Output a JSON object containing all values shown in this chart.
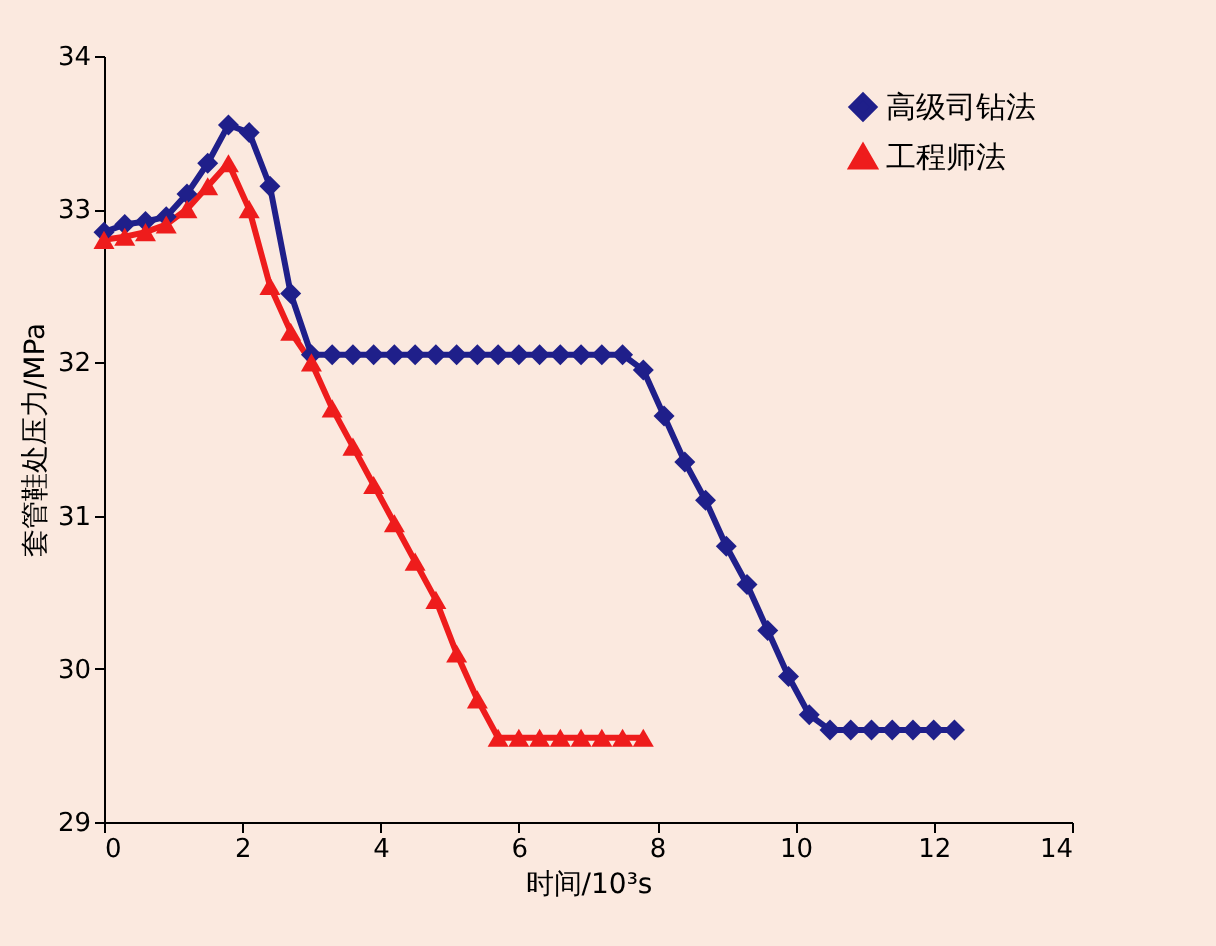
{
  "chart_data": {
    "type": "line",
    "xlabel": "时间/10³s",
    "ylabel": "套管鞋处压力/MPa",
    "xlim": [
      0,
      14
    ],
    "xticks": [
      0,
      2,
      4,
      6,
      8,
      10,
      12,
      14
    ],
    "ylim": [
      29,
      34
    ],
    "yticks": [
      29,
      30,
      31,
      32,
      33,
      34
    ],
    "grid": false,
    "legend": "top right",
    "line_style": "solid",
    "series": [
      {
        "name": "高级司钻法",
        "color": "#1f1f8a",
        "marker": "diamond",
        "x": [
          0,
          0.3,
          0.6,
          0.9,
          1.2,
          1.5,
          1.8,
          2.1,
          2.4,
          2.7,
          3.0,
          3.3,
          3.6,
          3.9,
          4.2,
          4.5,
          4.8,
          5.1,
          5.4,
          5.7,
          6.0,
          6.3,
          6.6,
          6.9,
          7.2,
          7.5,
          7.8,
          8.1,
          8.4,
          8.7,
          9.0,
          9.3,
          9.6,
          9.9,
          10.2,
          10.5,
          10.8,
          11.1,
          11.4,
          11.7,
          12.0,
          12.3
        ],
        "values": [
          32.85,
          32.9,
          32.92,
          32.95,
          33.1,
          33.3,
          33.55,
          33.5,
          33.15,
          32.45,
          32.05,
          32.05,
          32.05,
          32.05,
          32.05,
          32.05,
          32.05,
          32.05,
          32.05,
          32.05,
          32.05,
          32.05,
          32.05,
          32.05,
          32.05,
          32.05,
          31.95,
          31.65,
          31.35,
          31.1,
          30.8,
          30.55,
          30.25,
          29.95,
          29.7,
          29.6,
          29.6,
          29.6,
          29.6,
          29.6,
          29.6,
          29.6
        ]
      },
      {
        "name": "工程师法",
        "color": "#ee1c1c",
        "marker": "triangle",
        "x": [
          0,
          0.3,
          0.6,
          0.9,
          1.2,
          1.5,
          1.8,
          2.1,
          2.4,
          2.7,
          3.0,
          3.3,
          3.6,
          3.9,
          4.2,
          4.5,
          4.8,
          5.1,
          5.4,
          5.7,
          6.0,
          6.3,
          6.6,
          6.9,
          7.2,
          7.5,
          7.8
        ],
        "values": [
          32.8,
          32.82,
          32.85,
          32.9,
          33.0,
          33.15,
          33.3,
          33.0,
          32.5,
          32.2,
          32.0,
          31.7,
          31.45,
          31.2,
          30.95,
          30.7,
          30.45,
          30.1,
          29.8,
          29.55,
          29.55,
          29.55,
          29.55,
          29.55,
          29.55,
          29.55,
          29.55
        ]
      }
    ]
  }
}
